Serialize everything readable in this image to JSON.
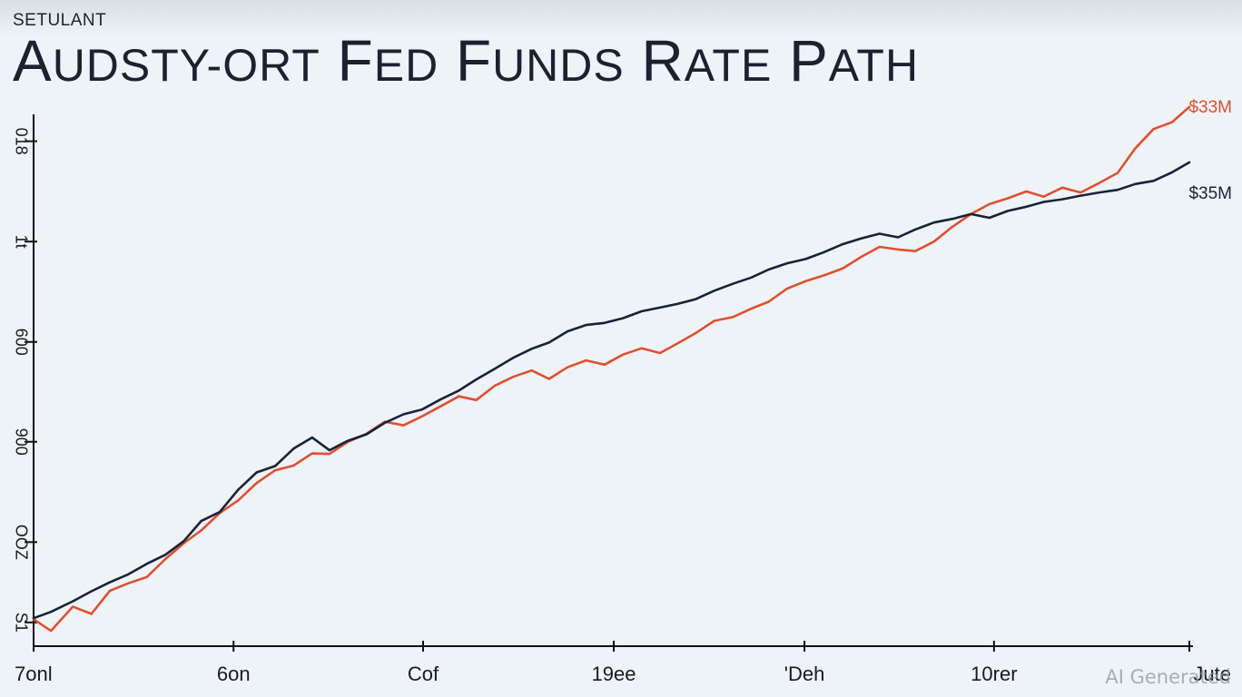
{
  "header": {
    "brand": "SETULANT",
    "title_parts": [
      "A",
      "UDSTY-ORT",
      " F",
      "ED",
      " F",
      "UNDS",
      " R",
      "ATE",
      " P",
      "ATH"
    ]
  },
  "watermark": "AI Generated",
  "colors": {
    "background": "#eef3f8",
    "axis": "#111111",
    "series_red": "#e0502e",
    "series_navy": "#162338"
  },
  "chart_data": {
    "type": "line",
    "title": "AUDSTY-ORT FED FUNDS RATE PATH",
    "xlabel": "",
    "ylabel": "",
    "xlim": [
      0,
      100
    ],
    "ylim": [
      0,
      100
    ],
    "x_ticks": [
      {
        "pos": 0,
        "label": "7onl"
      },
      {
        "pos": 17.3,
        "label": "6on"
      },
      {
        "pos": 33.7,
        "label": "Cof"
      },
      {
        "pos": 50.2,
        "label": "19ee"
      },
      {
        "pos": 66.7,
        "label": "'Deh"
      },
      {
        "pos": 83.1,
        "label": "10rer"
      },
      {
        "pos": 100,
        "label": "Jute"
      }
    ],
    "y_ticks": [
      {
        "pos": 4.5,
        "label": "S1"
      },
      {
        "pos": 19.7,
        "label": "OOZ"
      },
      {
        "pos": 38.7,
        "label": "900"
      },
      {
        "pos": 57.6,
        "label": "600"
      },
      {
        "pos": 76.6,
        "label": "1t"
      },
      {
        "pos": 95.6,
        "label": "018"
      }
    ],
    "grid": false,
    "legend": "none",
    "series": [
      {
        "label": "$33M",
        "color": "#e0502e",
        "x": [
          0,
          1.5,
          3.4,
          5,
          6.6,
          8.2,
          9.8,
          11.4,
          13,
          14.5,
          16.1,
          17.7,
          19.3,
          20.9,
          22.5,
          24.1,
          25.6,
          27.2,
          28.8,
          30.4,
          32,
          33.6,
          35.2,
          36.8,
          38.3,
          39.9,
          41.5,
          43.1,
          44.6,
          46.2,
          47.8,
          49.4,
          51,
          52.6,
          54.2,
          55.7,
          57.3,
          58.9,
          60.5,
          62.1,
          63.6,
          65.2,
          66.8,
          68.4,
          70,
          71.6,
          73.2,
          74.8,
          76.3,
          77.9,
          79.5,
          81.1,
          82.7,
          84.3,
          85.9,
          87.4,
          89,
          90.6,
          92.2,
          93.8,
          95.3,
          96.9,
          98.5,
          100
        ],
        "y": [
          5.1,
          2.9,
          7.5,
          6.1,
          10.5,
          11.9,
          13.1,
          16.5,
          19.5,
          21.9,
          25.2,
          27.6,
          30.9,
          33.3,
          34.2,
          36.5,
          36.4,
          38.7,
          40.2,
          42.5,
          41.8,
          43.5,
          45.4,
          47.3,
          46.6,
          49.3,
          51,
          52.2,
          50.6,
          52.8,
          54.1,
          53.3,
          55.2,
          56.4,
          55.5,
          57.3,
          59.3,
          61.6,
          62.3,
          63.9,
          65.2,
          67.7,
          69.1,
          70.2,
          71.5,
          73.7,
          75.6,
          75.1,
          74.8,
          76.6,
          79.4,
          81.8,
          83.7,
          84.8,
          86.1,
          85.1,
          86.8,
          85.9,
          87.7,
          89.6,
          94.2,
          97.9,
          99.2,
          102.1
        ]
      },
      {
        "label": "$35M",
        "color": "#162338",
        "x": [
          0,
          1.5,
          3.4,
          5,
          6.6,
          8.2,
          9.8,
          11.4,
          13,
          14.5,
          16.1,
          17.7,
          19.3,
          20.9,
          22.5,
          24.1,
          25.6,
          27.2,
          28.8,
          30.4,
          32,
          33.6,
          35.2,
          36.8,
          38.3,
          39.9,
          41.5,
          43.1,
          44.6,
          46.2,
          47.8,
          49.4,
          51,
          52.6,
          54.2,
          55.7,
          57.3,
          58.9,
          60.5,
          62.1,
          63.6,
          65.2,
          66.8,
          68.4,
          70,
          71.6,
          73.2,
          74.8,
          76.3,
          77.9,
          79.5,
          81.1,
          82.7,
          84.3,
          85.9,
          87.4,
          89,
          90.6,
          92.2,
          93.8,
          95.3,
          96.9,
          98.5,
          100
        ],
        "y": [
          5.3,
          6.5,
          8.5,
          10.4,
          12.1,
          13.6,
          15.6,
          17.3,
          19.9,
          23.7,
          25.4,
          29.6,
          32.9,
          34.1,
          37.4,
          39.5,
          37.1,
          38.9,
          40.1,
          42.3,
          43.9,
          44.8,
          46.7,
          48.4,
          50.5,
          52.5,
          54.6,
          56.3,
          57.5,
          59.6,
          60.8,
          61.2,
          62.1,
          63.4,
          64.1,
          64.8,
          65.7,
          67.3,
          68.6,
          69.8,
          71.3,
          72.5,
          73.3,
          74.6,
          76.1,
          77.2,
          78.1,
          77.4,
          78.9,
          80.2,
          80.9,
          81.8,
          81.1,
          82.4,
          83.2,
          84.1,
          84.6,
          85.3,
          85.9,
          86.4,
          87.5,
          88.1,
          89.7,
          91.6
        ]
      }
    ]
  }
}
